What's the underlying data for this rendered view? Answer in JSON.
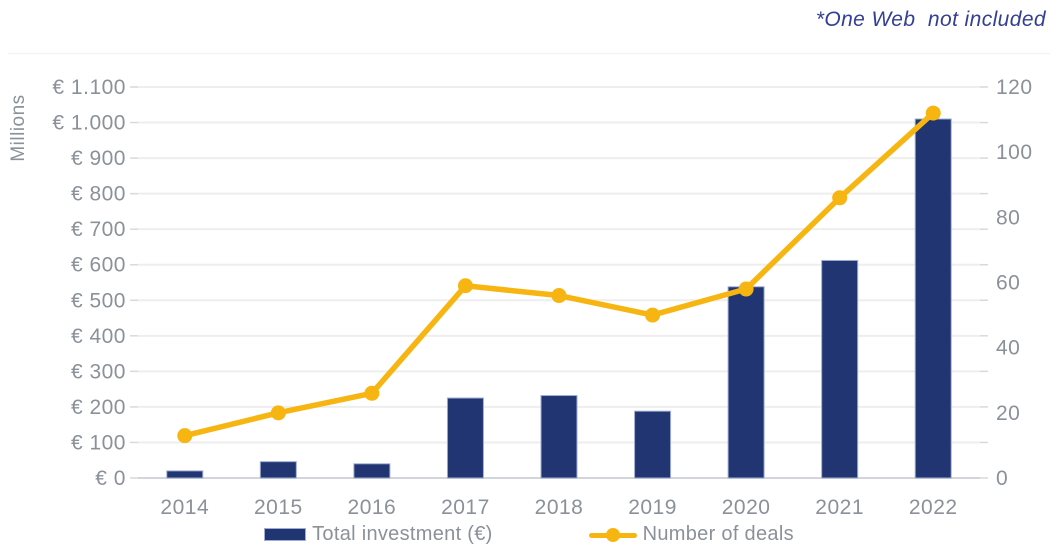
{
  "annotation": {
    "note": "*One Web  not included"
  },
  "colors": {
    "bar": "#213572",
    "bar_edge": "#9fadd2",
    "line": "#f7b512",
    "axis_text": "#8b9199",
    "gridline": "#eeeeee",
    "zero_line": "#d2d6da",
    "tick_mark": "#d9d9d9",
    "frame_line": "#f4f4f4",
    "annotation": "#343e94"
  },
  "chart_data": {
    "type": "combo-bar-line",
    "title": "",
    "categories": [
      "2014",
      "2015",
      "2016",
      "2017",
      "2018",
      "2019",
      "2020",
      "2021",
      "2022"
    ],
    "series": [
      {
        "name": "Total investment (€)",
        "type": "bar",
        "axis": "left",
        "values": [
          20,
          46,
          40,
          225,
          232,
          188,
          538,
          612,
          1010
        ]
      },
      {
        "name": "Number of deals",
        "type": "line",
        "axis": "right",
        "values": [
          13,
          20,
          26,
          59,
          56,
          50,
          58,
          86,
          112
        ]
      }
    ],
    "left_axis": {
      "title": "Millions",
      "min": 0,
      "max": 1100,
      "step": 100,
      "tick_labels": [
        "€ 0",
        "€ 100",
        "€ 200",
        "€ 300",
        "€ 400",
        "€ 500",
        "€ 600",
        "€ 700",
        "€ 800",
        "€ 900",
        "€ 1.000",
        "€ 1.100"
      ]
    },
    "right_axis": {
      "min": 0,
      "max": 120,
      "step": 20,
      "tick_labels": [
        "0",
        "20",
        "40",
        "60",
        "80",
        "100",
        "120"
      ]
    },
    "grid": true,
    "legend_position": "bottom"
  },
  "legend": {
    "items": [
      {
        "label": "Total investment (€)"
      },
      {
        "label": "Number of deals"
      }
    ]
  }
}
